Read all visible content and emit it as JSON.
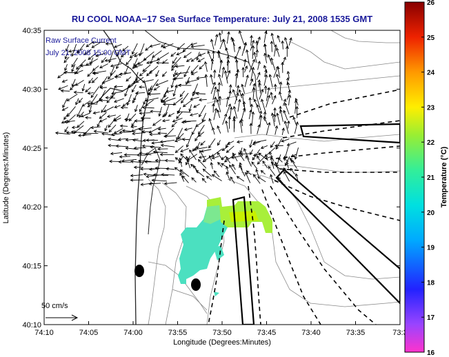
{
  "title": "RU COOL  NOAA−17  Sea Surface Temperature:  July 21, 2008 1535 GMT",
  "inset": {
    "line1": "Raw Surface Current",
    "line2": "July 21, 2008 15:00 GMT",
    "scale_label": "50 cm/s"
  },
  "axes": {
    "xlabel": "Longitude (Degrees:Minutes)",
    "ylabel": "Latitude (Degrees:Minutes)",
    "xticks": [
      "74:10",
      "74:05",
      "74:00",
      "73:55",
      "73:50",
      "73:45",
      "73:40",
      "73:35",
      "73:3"
    ],
    "yticks": [
      "40:35",
      "40:30",
      "40:25",
      "40:20",
      "40:15",
      "40:10"
    ]
  },
  "colorbar": {
    "label": "Temperature (°C)",
    "ticks": [
      "26",
      "25",
      "24",
      "23",
      "22",
      "21",
      "20",
      "19",
      "18",
      "17",
      "16"
    ],
    "min": 16,
    "max": 26
  },
  "colors": {
    "title": "#1a1a9a",
    "sst_cold": "#40e0d0",
    "sst_warm": "#c8f000"
  }
}
